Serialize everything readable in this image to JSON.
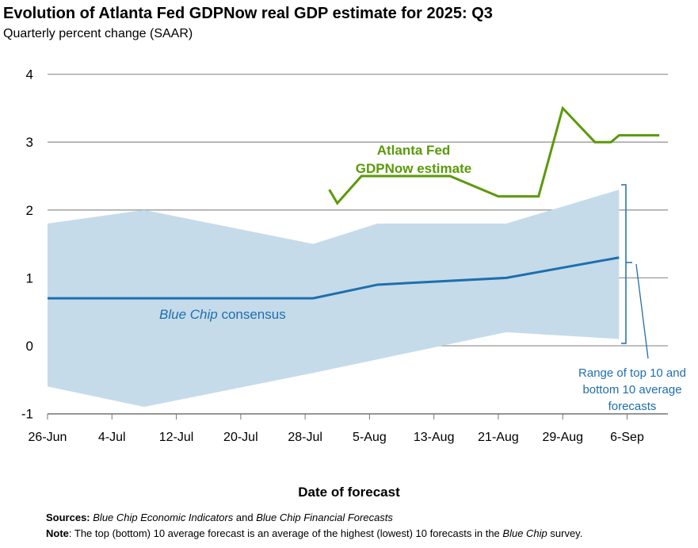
{
  "chart_data": {
    "type": "line",
    "title": "Evolution of Atlanta Fed GDPNow real GDP estimate for 2025: Q3",
    "subtitle": "Quarterly percent change (SAAR)",
    "xlabel": "Date of forecast",
    "ylabel": "",
    "ylim": [
      -1,
      4
    ],
    "yticks": [
      "4",
      "3",
      "2",
      "1",
      "0",
      "-1"
    ],
    "yticks_values": [
      4,
      3,
      2,
      1,
      0,
      -1
    ],
    "xlim": [
      "2025-06-26",
      "2025-09-13"
    ],
    "xticks": [
      {
        "date": "2025-06-26",
        "label": "26-Jun"
      },
      {
        "date": "2025-07-04",
        "label": "4-Jul"
      },
      {
        "date": "2025-07-12",
        "label": "12-Jul"
      },
      {
        "date": "2025-07-20",
        "label": "20-Jul"
      },
      {
        "date": "2025-07-28",
        "label": "28-Jul"
      },
      {
        "date": "2025-08-05",
        "label": "5-Aug"
      },
      {
        "date": "2025-08-13",
        "label": "13-Aug"
      },
      {
        "date": "2025-08-21",
        "label": "21-Aug"
      },
      {
        "date": "2025-08-29",
        "label": "29-Aug"
      },
      {
        "date": "2025-09-06",
        "label": "6-Sep"
      }
    ],
    "grid": true,
    "series": [
      {
        "name": "Atlanta Fed GDPNow estimate",
        "label_lines": [
          "Atlanta Fed",
          "GDPNow estimate"
        ],
        "color": "#5a9a08",
        "x": [
          "2025-07-31",
          "2025-08-01",
          "2025-08-04",
          "2025-08-15",
          "2025-08-21",
          "2025-08-26",
          "2025-08-29",
          "2025-09-02",
          "2025-09-04",
          "2025-09-05",
          "2025-09-10"
        ],
        "values": [
          2.3,
          2.1,
          2.5,
          2.5,
          2.2,
          2.2,
          3.5,
          3.0,
          3.0,
          3.1,
          3.1
        ]
      },
      {
        "name": "Blue Chip consensus",
        "label_italic": "Blue Chip",
        "label_rest": " consensus",
        "color": "#1f6fad",
        "x": [
          "2025-06-26",
          "2025-07-08",
          "2025-07-29",
          "2025-08-06",
          "2025-08-22",
          "2025-09-05"
        ],
        "values": [
          0.7,
          0.7,
          0.7,
          0.9,
          1.0,
          1.3
        ]
      }
    ],
    "range_band": {
      "name": "Range of top 10 and bottom 10 average forecasts",
      "label_lines": [
        "Range of top 10 and",
        "bottom 10 average",
        "forecasts"
      ],
      "color": "#c5dbea",
      "x": [
        "2025-06-26",
        "2025-07-08",
        "2025-07-29",
        "2025-08-06",
        "2025-08-22",
        "2025-09-05"
      ],
      "top": [
        1.8,
        2.0,
        1.5,
        1.8,
        1.8,
        2.3
      ],
      "bottom": [
        -0.6,
        -0.9,
        -0.4,
        -0.2,
        0.2,
        0.1
      ]
    }
  },
  "footer": {
    "sources_label": "Sources:",
    "sources_a": "Blue Chip Economic Indicators",
    "sources_and": " and ",
    "sources_b": "Blue Chip Financial Forecasts",
    "note_label": "Note",
    "note_text": ": The top (bottom) 10 average forecast is an average of the highest (lowest) 10 forecasts in the ",
    "note_italic": "Blue Chip",
    "note_end": " survey."
  }
}
